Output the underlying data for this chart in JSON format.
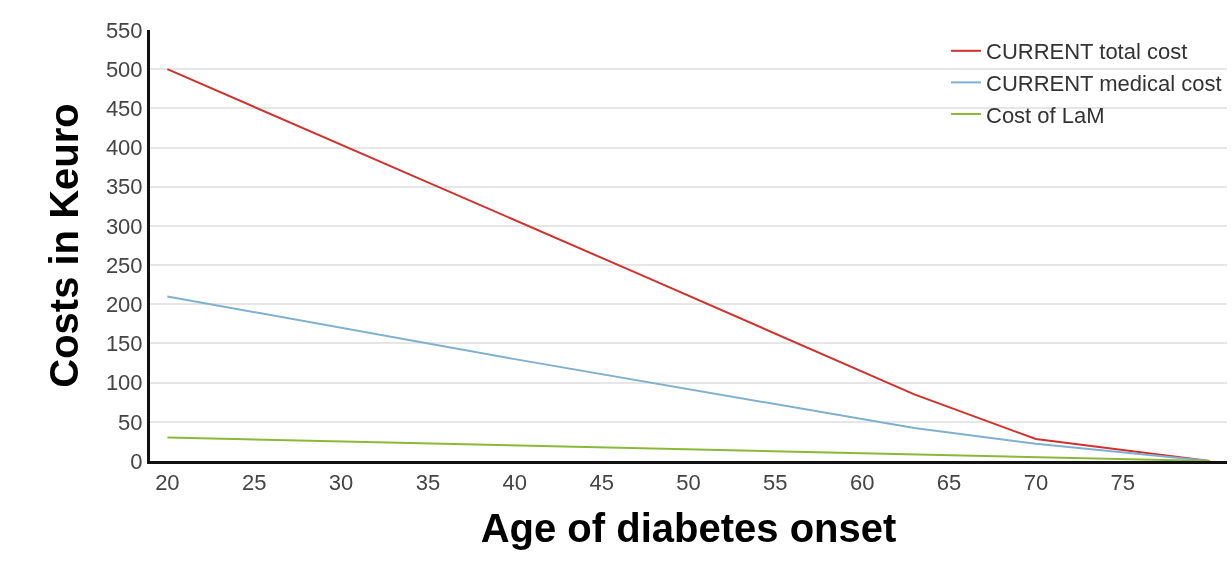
{
  "chart_data": {
    "type": "line",
    "xlabel": "Age of diabetes onset",
    "ylabel": "Costs in Keuro",
    "xlim": [
      19,
      81
    ],
    "xticks": [
      20,
      25,
      30,
      35,
      40,
      45,
      50,
      55,
      60,
      65,
      70,
      75
    ],
    "ylim": [
      0,
      550
    ],
    "yticks": [
      0,
      50,
      100,
      150,
      200,
      250,
      300,
      350,
      400,
      450,
      500,
      550
    ],
    "grid": "y",
    "legend": "top right",
    "marker": "none",
    "line_style": "solid",
    "series": [
      {
        "name": "CURRENT total cost",
        "color": "#d0312d",
        "x": [
          20,
          47,
          63,
          70,
          80
        ],
        "values": [
          500,
          240,
          85,
          28,
          0
        ]
      },
      {
        "name": "CURRENT medical cost",
        "color": "#7fb0d0",
        "x": [
          20,
          40,
          63,
          70,
          80
        ],
        "values": [
          210,
          130,
          42,
          22,
          0
        ]
      },
      {
        "name": "Cost of LaM",
        "color": "#8cb83a",
        "x": [
          20,
          80
        ],
        "values": [
          30,
          0
        ]
      }
    ]
  }
}
